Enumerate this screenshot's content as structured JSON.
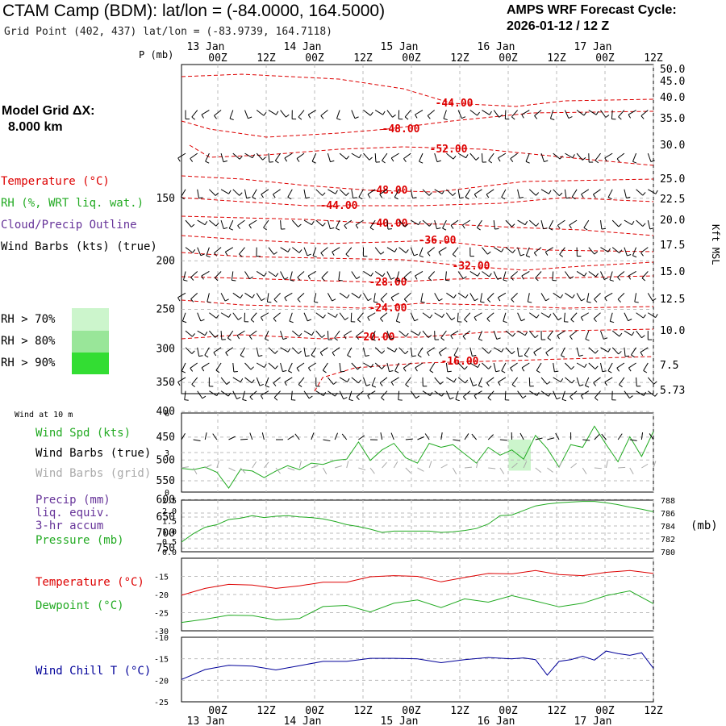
{
  "header": {
    "title": "CTAM Camp (BDM):  lat/lon = (-84.0000, 164.5000)",
    "grid_point": "Grid Point (402, 437) lat/lon = (-83.9739, 164.7118)",
    "cycle_line1": "AMPS WRF Forecast Cycle:",
    "cycle_line2": "2026-01-12 / 12  Z"
  },
  "left_labels": {
    "model_grid_1": "Model Grid ΔX:",
    "model_grid_2": "8.000 km",
    "temperature": "Temperature (°C)",
    "rh": "RH (%, WRT liq. wat.)",
    "cloud": "Cloud/Precip Outline",
    "wind_barbs": "Wind Barbs (kts) (true)",
    "rh70": "RH > 70%",
    "rh80": "RH > 80%",
    "rh90": "RH > 90%",
    "wind10m": "Wind at 10 m",
    "wind_spd": "Wind Spd (kts)",
    "wind_barbs_true": "Wind Barbs (true)",
    "wind_barbs_grid": "Wind Barbs (grid)",
    "precip1": "Precip (mm)",
    "precip2": "liq. equiv.",
    "precip3": "3-hr accum",
    "pressure": "Pressure (mb)",
    "temp2": "Temperature (°C)",
    "dewpoint": "Dewpoint (°C)",
    "windchill": "Wind Chill T (°C)",
    "p_axis_title": "P (mb)",
    "kft_axis_title": "Kft MSL",
    "mb_unit": "(mb)"
  },
  "colors": {
    "temperature": "#dd0000",
    "rh_green": "#22aa22",
    "cloud_purple": "#663399",
    "windchill_blue": "#000099",
    "rh70": "#ccf5cc",
    "rh80": "#99e699",
    "rh90": "#33dd33",
    "barb_grey": "#aaaaaa"
  },
  "chart_data": [
    {
      "type": "heatmap",
      "name": "upper-air time-height section",
      "time_ticks": [
        "00Z",
        "12Z",
        "00Z",
        "12Z",
        "00Z",
        "12Z",
        "00Z",
        "12Z",
        "00Z",
        "12Z"
      ],
      "day_labels": [
        "13 Jan",
        "14 Jan",
        "15 Jan",
        "16 Jan",
        "17 Jan"
      ],
      "pressure_ticks_mb": [
        150,
        200,
        250,
        300,
        350,
        400,
        450,
        500,
        550,
        600,
        650,
        700,
        750
      ],
      "height_ticks_kft": [
        "50.0",
        "45.0",
        "40.0",
        "35.0",
        "30.0",
        "25.0",
        "22.5",
        "20.0",
        "17.5",
        "15.0",
        "12.5",
        "10.0",
        "7.5",
        "5.73"
      ],
      "temperature_contour_labels": [
        "-44.00",
        "-48.00",
        "-52.00",
        "-48.00",
        "-44.00",
        "-40.00",
        "-36.00",
        "-32.00",
        "-28.00",
        "-24.00",
        "-20.00",
        "-16.00"
      ],
      "rh_gt_70_region": {
        "time_hours": [
          84,
          88
        ],
        "pressure_mb": [
          455,
          525
        ]
      }
    },
    {
      "type": "line",
      "name": "10 m wind speed",
      "y_ticks": [
        "6",
        "3",
        "0"
      ],
      "ylim": [
        0,
        6
      ],
      "x_hours": [
        0,
        3,
        6,
        9,
        12,
        15,
        18,
        21,
        24,
        27,
        30,
        33,
        36,
        39,
        42,
        45,
        48,
        51,
        54,
        57,
        60,
        63,
        66,
        69,
        72,
        75,
        78,
        81,
        84,
        87,
        90,
        93,
        96,
        99,
        102,
        105,
        108,
        111,
        114,
        117,
        120
      ],
      "values": [
        1.8,
        1.7,
        1.9,
        1.5,
        0.3,
        1.7,
        1.6,
        1.1,
        1.6,
        2.0,
        1.7,
        2.2,
        2.1,
        2.4,
        2.5,
        3.8,
        2.4,
        3.2,
        3.7,
        2.6,
        2.2,
        3.7,
        3.4,
        3.6,
        2.9,
        2.2,
        3.4,
        2.8,
        3.2,
        2.5,
        4.3,
        3.3,
        1.9,
        3.6,
        3.4,
        5.0,
        3.6,
        2.3,
        4.2,
        2.7,
        4.6
      ]
    },
    {
      "type": "line",
      "name": "pressure",
      "y_ticks_left": [
        "2.5",
        "2.0",
        "1.5",
        "1.0",
        "0.5",
        "0.0"
      ],
      "y_ticks_right": [
        "788",
        "786",
        "784",
        "782",
        "780"
      ],
      "ylim": [
        780,
        788
      ],
      "x_hours": [
        0,
        3,
        6,
        9,
        12,
        15,
        18,
        21,
        24,
        27,
        30,
        33,
        36,
        39,
        42,
        45,
        48,
        51,
        54,
        57,
        60,
        63,
        66,
        69,
        72,
        75,
        78,
        81,
        84,
        87,
        90,
        93,
        96,
        99,
        102,
        105,
        108,
        111,
        114,
        117,
        120
      ],
      "values": [
        781.5,
        782.8,
        783.8,
        784.2,
        785.0,
        785.2,
        785.6,
        785.3,
        785.5,
        785.6,
        785.4,
        785.3,
        785.1,
        784.7,
        784.2,
        783.9,
        783.5,
        783.0,
        783.2,
        783.2,
        783.2,
        783.2,
        783.0,
        783.1,
        783.3,
        783.6,
        784.3,
        785.6,
        785.7,
        786.4,
        787.1,
        787.4,
        787.6,
        787.7,
        787.8,
        787.8,
        787.6,
        787.3,
        786.9,
        786.6,
        786.2
      ]
    },
    {
      "type": "line",
      "name": "temperature and dewpoint",
      "y_ticks": [
        "-15",
        "-20",
        "-25",
        "-30"
      ],
      "ylim": [
        -30,
        -10
      ],
      "x_hours": [
        0,
        6,
        12,
        18,
        24,
        30,
        36,
        42,
        48,
        54,
        60,
        66,
        72,
        78,
        84,
        90,
        96,
        102,
        108,
        114,
        120
      ],
      "series": [
        {
          "name": "Temperature",
          "values": [
            -20.2,
            -18.3,
            -17.2,
            -17.4,
            -18.3,
            -17.6,
            -16.6,
            -16.6,
            -15.1,
            -14.8,
            -15.0,
            -16.5,
            -15.3,
            -14.2,
            -14.3,
            -13.4,
            -14.5,
            -14.8,
            -13.9,
            -13.4,
            -14.2
          ]
        },
        {
          "name": "Dewpoint",
          "values": [
            -27.7,
            -26.8,
            -25.7,
            -25.8,
            -27.0,
            -26.6,
            -23.3,
            -23.0,
            -24.8,
            -22.4,
            -21.5,
            -23.6,
            -21.2,
            -22.1,
            -20.3,
            -21.8,
            -23.4,
            -22.4,
            -20.3,
            -19.0,
            -22.5
          ]
        }
      ]
    },
    {
      "type": "line",
      "name": "wind chill",
      "y_ticks": [
        "-10",
        "-15",
        "-20",
        "-25"
      ],
      "ylim": [
        -25,
        -10
      ],
      "x_hours": [
        0,
        6,
        12,
        18,
        24,
        30,
        36,
        42,
        48,
        54,
        60,
        66,
        72,
        78,
        84,
        87,
        90,
        93,
        96,
        99,
        102,
        105,
        108,
        111,
        114,
        117,
        120
      ],
      "series": [
        {
          "name": "Wind Chill T",
          "values": [
            -19.8,
            -17.5,
            -16.5,
            -16.7,
            -17.6,
            -16.6,
            -15.6,
            -15.6,
            -14.9,
            -14.9,
            -15.0,
            -15.9,
            -15.2,
            -14.7,
            -15.0,
            -14.8,
            -15.2,
            -18.8,
            -15.6,
            -15.2,
            -14.4,
            -15.3,
            -13.2,
            -13.8,
            -14.2,
            -13.6,
            -17.2
          ]
        }
      ]
    }
  ]
}
